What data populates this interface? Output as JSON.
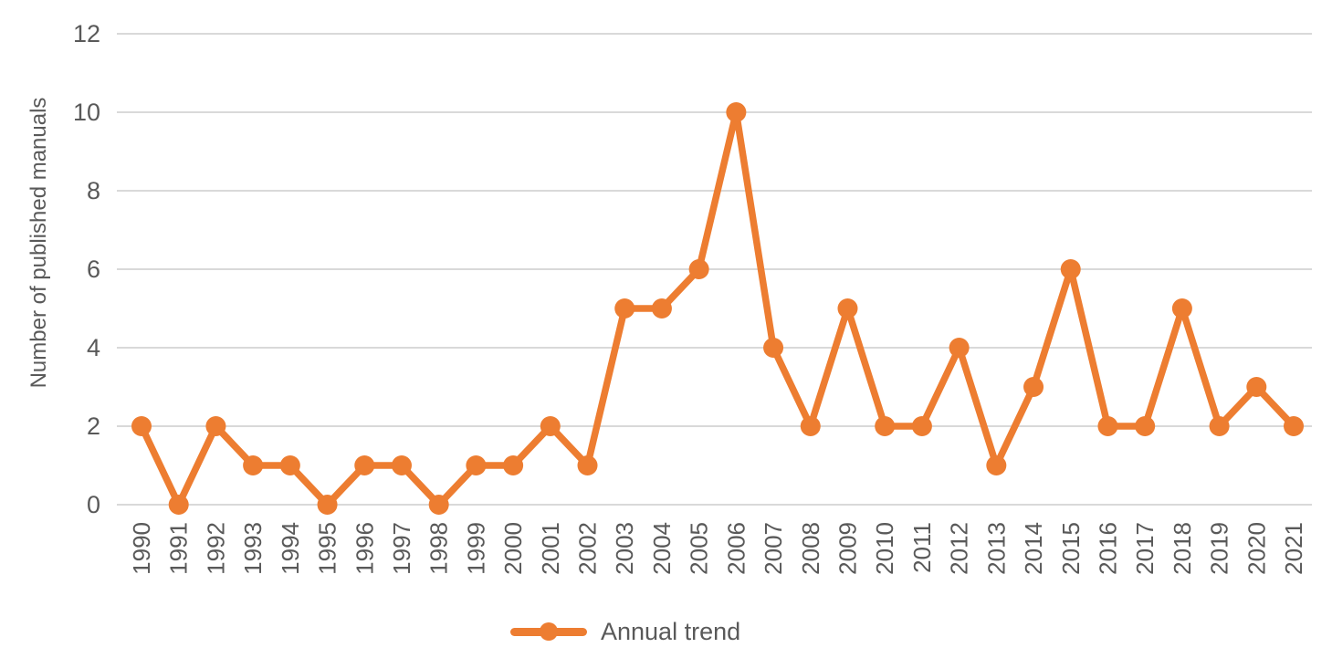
{
  "chart_data": {
    "type": "line",
    "ylabel": "Number of published manuals",
    "x": [
      "1990",
      "1991",
      "1992",
      "1993",
      "1994",
      "1995",
      "1996",
      "1997",
      "1998",
      "1999",
      "2000",
      "2001",
      "2002",
      "2003",
      "2004",
      "2005",
      "2006",
      "2007",
      "2008",
      "2009",
      "2010",
      "2011",
      "2012",
      "2013",
      "2014",
      "2015",
      "2016",
      "2017",
      "2018",
      "2019",
      "2020",
      "2021"
    ],
    "series": [
      {
        "name": "Annual trend",
        "values": [
          2,
          0,
          2,
          1,
          1,
          0,
          1,
          1,
          0,
          1,
          1,
          2,
          1,
          5,
          5,
          6,
          10,
          4,
          2,
          5,
          2,
          2,
          4,
          1,
          3,
          6,
          2,
          2,
          5,
          2,
          3,
          2
        ]
      }
    ],
    "yticks": [
      0,
      2,
      4,
      6,
      8,
      10,
      12
    ],
    "ylim": [
      0,
      12
    ],
    "grid": true,
    "legend_position": "bottom-center",
    "colors": {
      "line": "#ED7D31",
      "gridline": "#D9D9D9",
      "text": "#595959",
      "background": "#FFFFFF"
    }
  }
}
